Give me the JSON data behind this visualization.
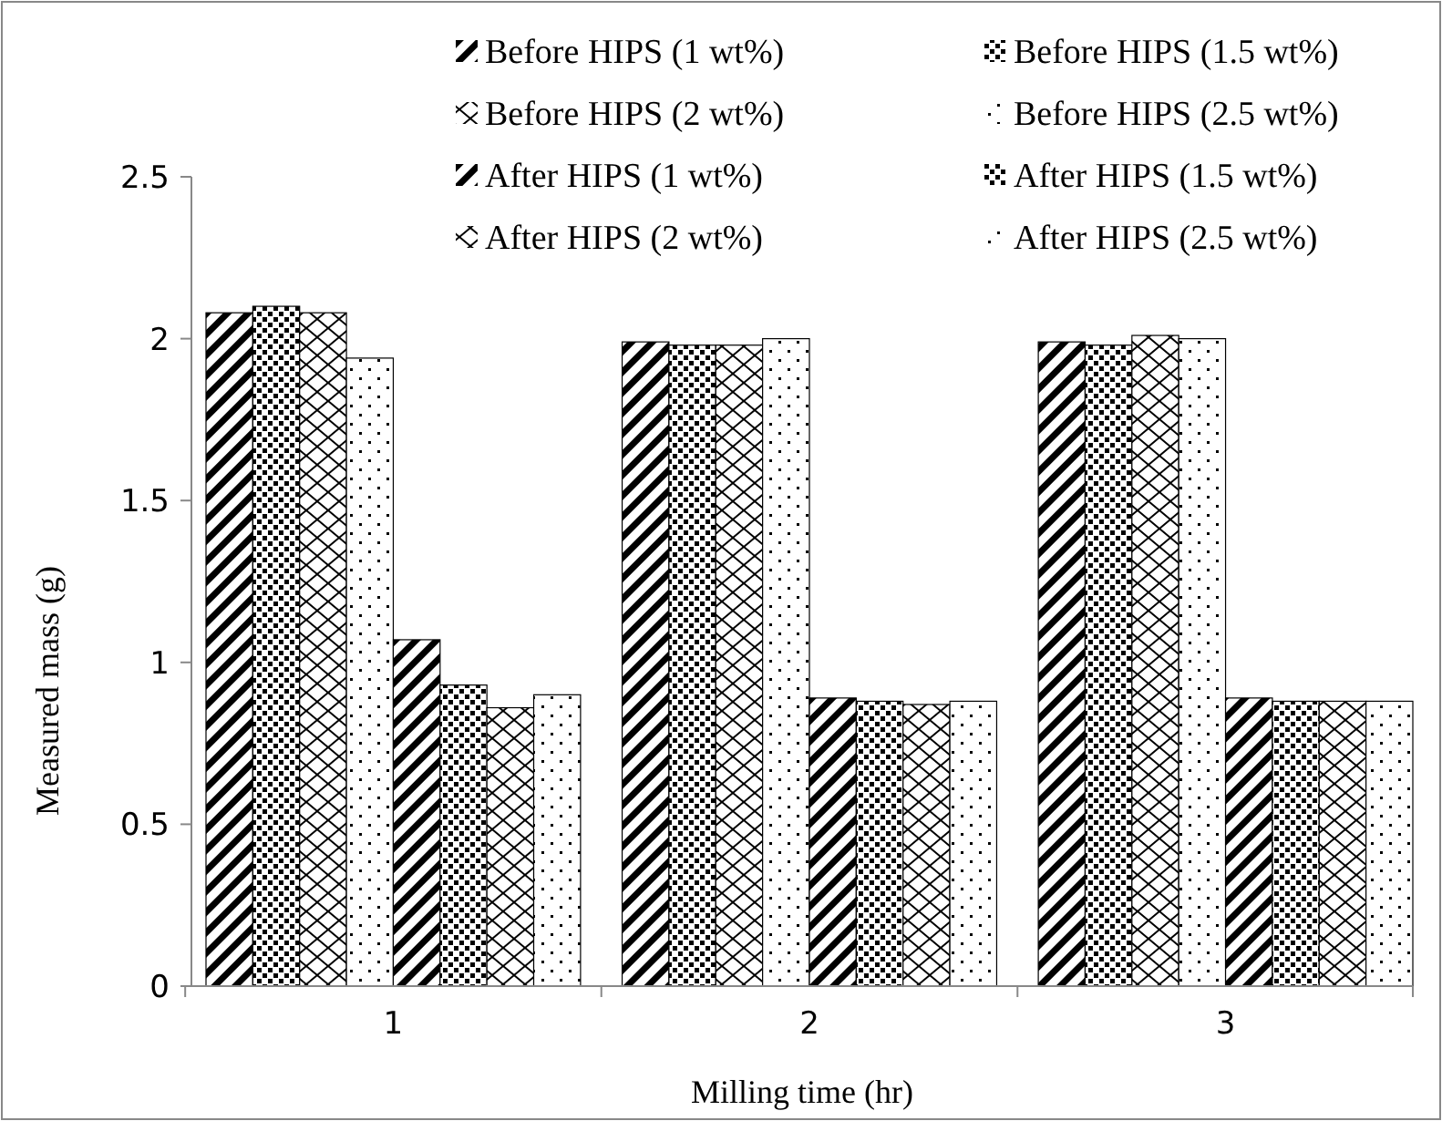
{
  "chart_data": {
    "type": "bar",
    "xlabel": "Milling time (hr)",
    "ylabel": "Measured mass (g)",
    "categories": [
      "1",
      "2",
      "3"
    ],
    "series": [
      {
        "name": "Before HIPS (1 wt%)",
        "color": "#000000",
        "values": [
          2.08,
          1.99,
          1.99
        ]
      },
      {
        "name": "Before HIPS (1.5 wt%)",
        "color": "#000000",
        "values": [
          2.1,
          1.98,
          1.98
        ]
      },
      {
        "name": "Before HIPS (2 wt%)",
        "color": "#000000",
        "values": [
          2.08,
          1.98,
          2.01
        ]
      },
      {
        "name": "Before HIPS (2.5 wt%)",
        "color": "#000000",
        "values": [
          1.94,
          2.0,
          2.0
        ]
      },
      {
        "name": "After HIPS (1 wt%)",
        "color": "#000000",
        "values": [
          1.07,
          0.89,
          0.89
        ]
      },
      {
        "name": "After HIPS (1.5 wt%)",
        "color": "#000000",
        "values": [
          0.93,
          0.88,
          0.88
        ]
      },
      {
        "name": "After HIPS (2 wt%)",
        "color": "#000000",
        "values": [
          0.86,
          0.87,
          0.88
        ]
      },
      {
        "name": "After HIPS (2.5 wt%)",
        "color": "#000000",
        "values": [
          0.9,
          0.88,
          0.88
        ]
      }
    ],
    "ylim": [
      0,
      2.5
    ],
    "yticks": [
      0,
      0.5,
      1,
      1.5,
      2,
      2.5
    ],
    "legend": "top",
    "grid": false
  }
}
